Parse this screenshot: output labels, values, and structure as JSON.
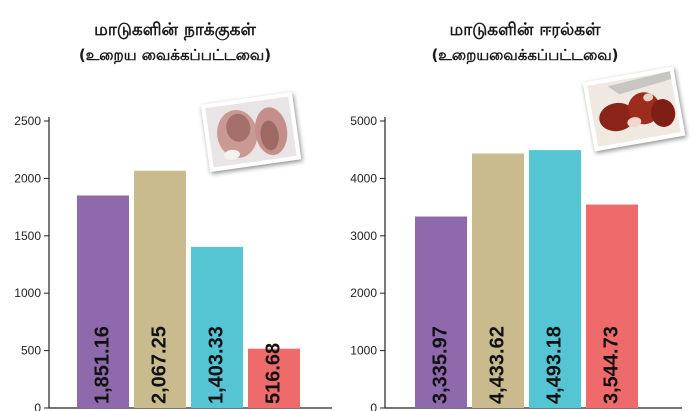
{
  "chart_data": [
    {
      "type": "bar",
      "title": "மாடுகளின் நாக்குகள்",
      "subtitle": "(உறைய வைக்கப்பட்டவை)",
      "categories": [
        "",
        "",
        "",
        ""
      ],
      "values": [
        1851.16,
        2067.25,
        1403.33,
        516.68
      ],
      "value_labels": [
        "1,851.16",
        "2,067.25",
        "1,403.33",
        "516.68"
      ],
      "bar_colors": [
        "#8e6aad",
        "#c9bb8e",
        "#56c5d3",
        "#ef6b6b"
      ],
      "yticks": [
        "0",
        "500",
        "1000",
        "1500",
        "2000",
        "2500"
      ],
      "ylim": [
        0,
        2500
      ],
      "grid": false,
      "legend": "none"
    },
    {
      "type": "bar",
      "title": "மாடுகளின் ஈரல்கள்",
      "subtitle": "(உறையவைக்கப்பட்டவை)",
      "categories": [
        "",
        "",
        "",
        ""
      ],
      "values": [
        3335.97,
        4433.62,
        4493.18,
        3544.73
      ],
      "value_labels": [
        "3,335.97",
        "4,433.62",
        "4,493.18",
        "3,544.73"
      ],
      "bar_colors": [
        "#8e6aad",
        "#c9bb8e",
        "#56c5d3",
        "#ef6b6b"
      ],
      "yticks": [
        "0",
        "1000",
        "2000",
        "3000",
        "4000",
        "5000"
      ],
      "ylim": [
        0,
        5000
      ],
      "grid": false,
      "legend": "none"
    }
  ],
  "images": [
    {
      "icon": "beef-tongue-photo-icon"
    },
    {
      "icon": "beef-liver-photo-icon"
    }
  ]
}
